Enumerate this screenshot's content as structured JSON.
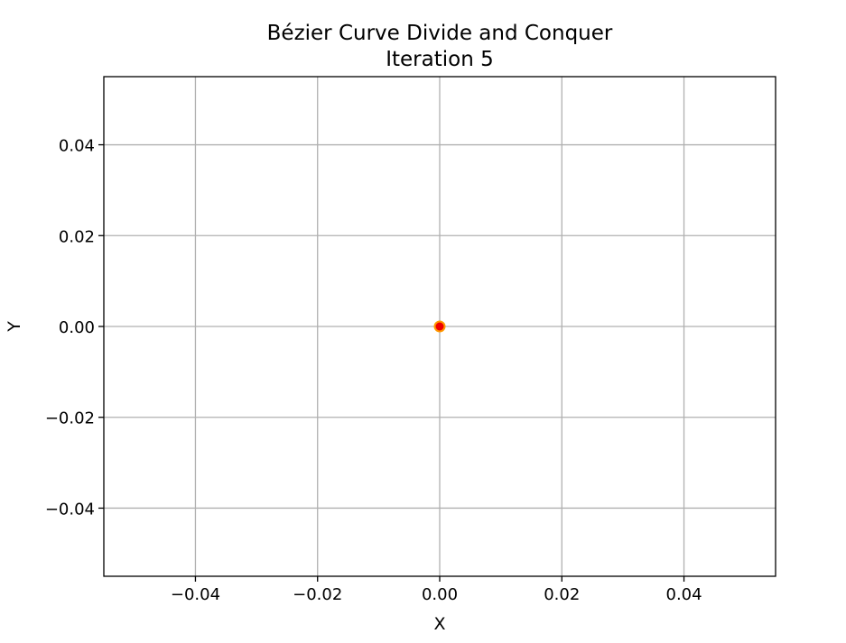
{
  "chart_data": {
    "type": "scatter",
    "title": "Bézier Curve Divide and Conquer",
    "subtitle": "Iteration 5",
    "xlabel": "X",
    "ylabel": "Y",
    "xlim": [
      -0.055,
      0.055
    ],
    "ylim": [
      -0.055,
      0.055
    ],
    "xticks": [
      -0.04,
      -0.02,
      0.0,
      0.02,
      0.04
    ],
    "yticks": [
      -0.04,
      -0.02,
      0.0,
      0.02,
      0.04
    ],
    "xtick_labels": [
      "−0.04",
      "−0.02",
      "0.00",
      "0.02",
      "0.04"
    ],
    "ytick_labels": [
      "−0.04",
      "−0.02",
      "0.00",
      "0.02",
      "0.04"
    ],
    "grid": true,
    "points": [
      {
        "x": 0.0,
        "y": 0.0
      }
    ],
    "colors": {
      "marker_fill": "#ee0000",
      "marker_edge": "#ff9900",
      "grid": "#b0b0b0",
      "frame": "#000000"
    }
  }
}
